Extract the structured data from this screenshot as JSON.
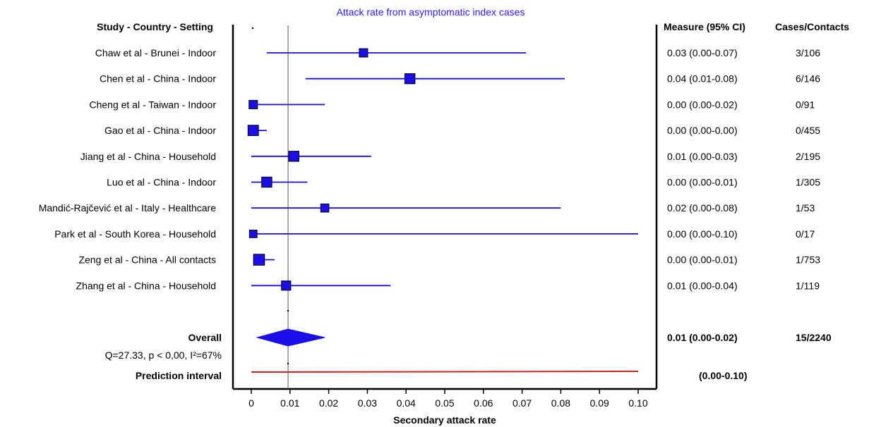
{
  "chart_data": {
    "type": "forest",
    "title": "Attack rate from asymptomatic index cases",
    "xlabel": "Secondary attack rate",
    "xlim": [
      0,
      0.1
    ],
    "xticks": [
      "0",
      "0.01",
      "0.02",
      "0.03",
      "0.04",
      "0.05",
      "0.06",
      "0.07",
      "0.08",
      "0.09",
      "0.10"
    ],
    "headers": {
      "study": "Study - Country - Setting",
      "measure": "Measure (95% CI)",
      "cases": "Cases/Contacts"
    },
    "colors": {
      "study": "#1a0fe8",
      "marker_border": "#000000",
      "prediction": "#cc2222",
      "title": "#2b1cf2"
    },
    "studies": [
      {
        "label": "Chaw et al - Brunei - Indoor",
        "estimate": 0.029,
        "lower": 0.004,
        "upper": 0.071,
        "weight": 0.5,
        "measure": "0.03  (0.00-0.07)",
        "cases": "3/106"
      },
      {
        "label": "Chen et al - China - Indoor",
        "estimate": 0.041,
        "lower": 0.014,
        "upper": 0.081,
        "weight": 0.8,
        "measure": "0.04  (0.01-0.08)",
        "cases": "6/146"
      },
      {
        "label": "Cheng et al - Taiwan - Indoor",
        "estimate": 0.0005,
        "lower": 0.0,
        "upper": 0.019,
        "weight": 0.5,
        "measure": "0.00  (0.00-0.02)",
        "cases": "0/91"
      },
      {
        "label": "Gao et al - China -  Indoor",
        "estimate": 0.0005,
        "lower": 0.0,
        "upper": 0.004,
        "weight": 0.85,
        "measure": "0.00  (0.00-0.00)",
        "cases": "0/455"
      },
      {
        "label": "Jiang et al - China -  Household",
        "estimate": 0.011,
        "lower": 0.0,
        "upper": 0.031,
        "weight": 0.8,
        "measure": "0.01  (0.00-0.03)",
        "cases": "2/195"
      },
      {
        "label": "Luo et al - China - Indoor",
        "estimate": 0.004,
        "lower": 0.0,
        "upper": 0.0145,
        "weight": 0.8,
        "measure": "0.00  (0.00-0.01)",
        "cases": "1/305"
      },
      {
        "label": "Mandić-Rajčević et al - Italy - Healthcare",
        "estimate": 0.019,
        "lower": 0.0,
        "upper": 0.08,
        "weight": 0.45,
        "measure": "0.02  (0.00-0.08)",
        "cases": "1/53"
      },
      {
        "label": "Park et al - South Korea - Household",
        "estimate": 0.0005,
        "lower": 0.0,
        "upper": 0.1,
        "weight": 0.35,
        "measure": "0.00  (0.00-0.10)",
        "cases": "0/17"
      },
      {
        "label": "Zeng et al - China -  All contacts",
        "estimate": 0.002,
        "lower": 0.0005,
        "upper": 0.006,
        "weight": 0.95,
        "measure": "0.00  (0.00-0.01)",
        "cases": "1/753"
      },
      {
        "label": "Zhang et al - China - Household",
        "estimate": 0.009,
        "lower": 0.0,
        "upper": 0.036,
        "weight": 0.65,
        "measure": "0.01  (0.00-0.04)",
        "cases": "1/119"
      }
    ],
    "overall": {
      "label": "Overall",
      "estimate": 0.0095,
      "lower": 0.0015,
      "upper": 0.019,
      "measure": "0.01  (0.00-0.02)",
      "cases": "15/2240",
      "heterogeneity": "Q=27.33, p < 0,00, I²=67%"
    },
    "prediction_interval": {
      "label": "Prediction interval",
      "lower": 0.0,
      "upper": 0.1,
      "measure": "(0.00-0.10)"
    }
  }
}
